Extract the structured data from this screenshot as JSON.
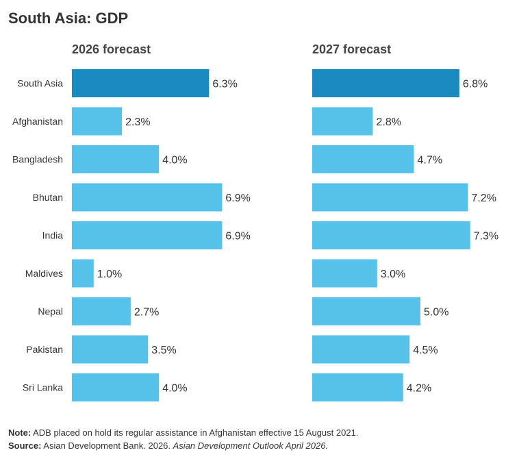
{
  "title": "South Asia: GDP",
  "colors": {
    "highlight": "#1b8ac0",
    "bar": "#56c2ea",
    "text": "#333333"
  },
  "chart_data": [
    {
      "type": "bar",
      "orientation": "horizontal",
      "title": "2026 forecast",
      "categories": [
        "South Asia",
        "Afghanistan",
        "Bangladesh",
        "Bhutan",
        "India",
        "Maldives",
        "Nepal",
        "Pakistan",
        "Sri Lanka"
      ],
      "values": [
        6.3,
        2.3,
        4.0,
        6.9,
        6.9,
        1.0,
        2.7,
        3.5,
        4.0
      ],
      "value_labels": [
        "6.3%",
        "2.3%",
        "4.0%",
        "6.9%",
        "6.9%",
        "1.0%",
        "2.7%",
        "3.5%",
        "4.0%"
      ],
      "highlight_category": "South Asia",
      "grid": false
    },
    {
      "type": "bar",
      "orientation": "horizontal",
      "title": "2027 forecast",
      "categories": [
        "South Asia",
        "Afghanistan",
        "Bangladesh",
        "Bhutan",
        "India",
        "Maldives",
        "Nepal",
        "Pakistan",
        "Sri Lanka"
      ],
      "values": [
        6.8,
        2.8,
        4.7,
        7.2,
        7.3,
        3.0,
        5.0,
        4.5,
        4.2
      ],
      "value_labels": [
        "6.8%",
        "2.8%",
        "4.7%",
        "7.2%",
        "7.3%",
        "3.0%",
        "5.0%",
        "4.5%",
        "4.2%"
      ],
      "highlight_category": "South Asia",
      "grid": false
    }
  ],
  "footer": {
    "note_label": "Note:",
    "note_text": " ADB placed on hold its regular assistance in Afghanistan effective 15 August 2021.",
    "source_label": "Source:",
    "source_text": " Asian Development Bank. 2026. ",
    "source_italic": "Asian Development Outlook April 2026."
  }
}
